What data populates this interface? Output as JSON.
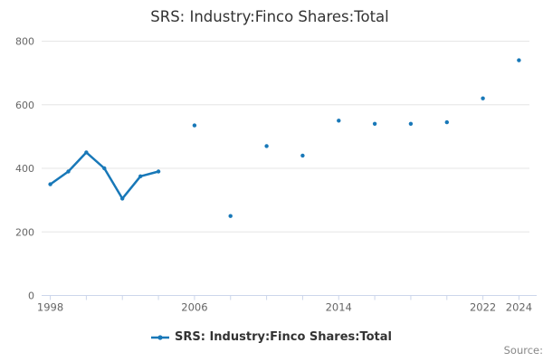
{
  "title": "SRS: Industry:Finco Shares:Total",
  "legend": {
    "label": "SRS: Industry:Finco Shares:Total"
  },
  "footer": {
    "source_label": "Source:"
  },
  "colors": {
    "series": "#1878b8",
    "grid": "#e6e6e6",
    "axis": "#ccd6eb",
    "tick_label": "#666666",
    "title": "#333333",
    "legend_text": "#333333",
    "source_text": "#888888",
    "background": "#ffffff"
  },
  "chart_data": {
    "type": "line",
    "title": "SRS: Industry:Finco Shares:Total",
    "series": [
      {
        "name": "SRS: Industry:Finco Shares:Total",
        "x": [
          1998,
          1999,
          2000,
          2001,
          2002,
          2003,
          2004,
          2006,
          2008,
          2010,
          2012,
          2014,
          2016,
          2018,
          2020,
          2022,
          2024
        ],
        "values": [
          350,
          390,
          450,
          400,
          305,
          375,
          390,
          535,
          250,
          470,
          440,
          550,
          540,
          540,
          545,
          620,
          740
        ],
        "note": "points more than 1 year apart are not connected by the line"
      }
    ],
    "xlabel": "",
    "ylabel": "",
    "xlim": [
      1997.52,
      2024.58
    ],
    "ylim": [
      0,
      800
    ],
    "y_ticks": [
      0,
      200,
      400,
      600,
      800
    ],
    "x_tick_start": 1998,
    "x_tick_end": 2024,
    "x_tick_step": 2,
    "x_tick_labels": [
      1998,
      2006,
      2014,
      2022,
      2024
    ],
    "grid": "horizontal",
    "legend_position": "bottom"
  }
}
